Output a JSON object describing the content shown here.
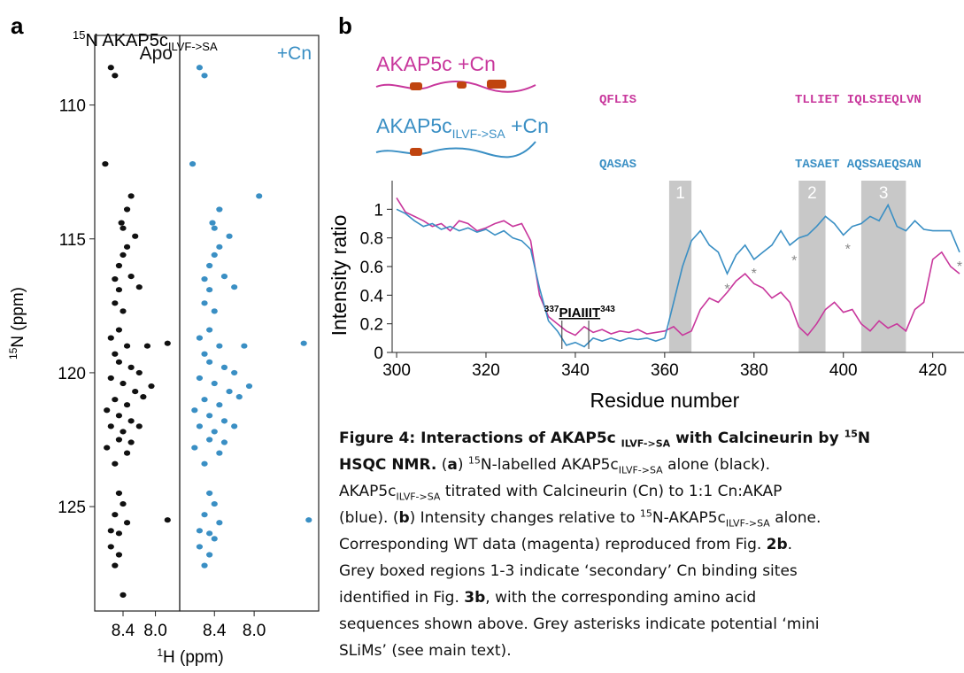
{
  "panel_labels": [
    "a",
    "b"
  ],
  "legend": {
    "wt": [
      "AKAP5c +Cn"
    ],
    "mutant": [
      "AKAP5c",
      "ILVF->SA",
      " +Cn"
    ]
  },
  "sequences": {
    "wt": [
      "QFLIS",
      "TLLIET IQLSIEQLVN"
    ],
    "mutant": [
      "QASAS",
      "TASAET AQSSAEQSAN"
    ]
  },
  "chart_data": [
    {
      "type": "scatter",
      "title": [
        "15",
        "N AKAP5c",
        "ILVF->SA"
      ],
      "label": "Apo",
      "ylabel": [
        "15",
        "N (ppm)"
      ],
      "xlabel": [
        "1",
        "H (ppm)"
      ],
      "color": "#111111",
      "xlim": [
        8.75,
        7.7
      ],
      "ylim": [
        107.4,
        128.9
      ],
      "xticks": [
        8.4,
        {
          "value": 8,
          "label": "8.0"
        }
      ],
      "yticks": [
        110,
        115,
        120,
        125
      ],
      "x": [
        8.55,
        8.5,
        8.62,
        8.3,
        8.35,
        8.42,
        8.4,
        8.25,
        8.35,
        8.4,
        8.45,
        8.5,
        8.45,
        8.3,
        8.2,
        8.5,
        8.4,
        8.45,
        8.55,
        8.35,
        8.5,
        8.1,
        7.85,
        8.45,
        8.3,
        8.2,
        8.55,
        8.4,
        8.05,
        8.25,
        8.15,
        8.5,
        8.35,
        8.6,
        8.45,
        8.3,
        8.55,
        8.4,
        8.2,
        8.45,
        8.6,
        8.35,
        8.5,
        8.3,
        8.45,
        8.4,
        8.5,
        8.35,
        7.85,
        8.55,
        8.45,
        8.45,
        8.5,
        8.4,
        8.55
      ],
      "y": [
        108.6,
        108.9,
        112.2,
        113.4,
        113.9,
        114.4,
        114.6,
        114.9,
        115.3,
        115.6,
        116.0,
        116.5,
        116.9,
        116.4,
        116.8,
        117.4,
        117.7,
        118.4,
        118.7,
        119.0,
        119.3,
        119.0,
        118.9,
        119.6,
        119.8,
        120.0,
        120.2,
        120.4,
        120.5,
        120.7,
        120.9,
        121.0,
        121.2,
        121.4,
        121.6,
        121.8,
        122.0,
        122.2,
        122.0,
        122.5,
        122.8,
        123.0,
        123.4,
        122.6,
        124.5,
        124.9,
        125.3,
        125.6,
        125.5,
        125.9,
        126.0,
        126.8,
        127.2,
        128.3,
        126.5
      ]
    },
    {
      "type": "scatter",
      "label": "+Cn",
      "color": "#3a8fc4",
      "xlim": [
        8.75,
        7.35
      ],
      "xticks": [
        8.4,
        {
          "value": 8,
          "label": "8.0"
        }
      ],
      "x": [
        8.55,
        8.5,
        8.62,
        7.95,
        8.35,
        8.42,
        8.4,
        8.25,
        8.35,
        8.4,
        8.45,
        8.5,
        8.45,
        8.3,
        8.2,
        8.5,
        8.4,
        8.45,
        8.55,
        8.35,
        8.5,
        8.1,
        7.5,
        8.45,
        8.3,
        8.2,
        8.55,
        8.4,
        8.05,
        8.25,
        8.15,
        8.5,
        8.35,
        8.6,
        8.45,
        8.3,
        8.55,
        8.4,
        8.2,
        8.45,
        8.6,
        8.35,
        8.5,
        8.3,
        8.45,
        8.4,
        8.5,
        8.35,
        7.45,
        8.55,
        8.45,
        8.45,
        8.5,
        8.4,
        8.55
      ],
      "y": [
        108.6,
        108.9,
        112.2,
        113.4,
        113.9,
        114.4,
        114.6,
        114.9,
        115.3,
        115.6,
        116.0,
        116.5,
        116.9,
        116.4,
        116.8,
        117.4,
        117.7,
        118.4,
        118.7,
        119.0,
        119.3,
        119.0,
        118.9,
        119.6,
        119.8,
        120.0,
        120.2,
        120.4,
        120.5,
        120.7,
        120.9,
        121.0,
        121.2,
        121.4,
        121.6,
        121.8,
        122.0,
        122.2,
        122.0,
        122.5,
        122.8,
        123.0,
        123.4,
        122.6,
        124.5,
        124.9,
        125.3,
        125.6,
        125.5,
        125.9,
        126.0,
        126.8,
        127.2,
        126.2,
        126.5
      ]
    },
    {
      "type": "line",
      "xlabel": "Residue number",
      "ylabel": "Intensity ratio",
      "xlim": [
        299,
        427
      ],
      "ylim": [
        0,
        1.2
      ],
      "xticks": [
        300,
        320,
        340,
        360,
        380,
        400,
        420
      ],
      "yticks": [
        0,
        0.2,
        0.4,
        0.6,
        0.8,
        1
      ],
      "x": [
        300,
        302,
        304,
        306,
        308,
        310,
        312,
        314,
        316,
        318,
        320,
        322,
        324,
        326,
        328,
        330,
        332,
        334,
        336,
        338,
        340,
        342,
        344,
        346,
        348,
        350,
        352,
        354,
        356,
        358,
        360,
        362,
        364,
        366,
        368,
        370,
        372,
        374,
        376,
        378,
        380,
        382,
        384,
        386,
        388,
        390,
        392,
        394,
        396,
        398,
        400,
        402,
        404,
        406,
        408,
        410,
        412,
        414,
        416,
        418,
        420,
        422,
        424,
        426
      ],
      "series": [
        {
          "color": "#c8379c",
          "values": [
            1.08,
            0.98,
            0.95,
            0.92,
            0.88,
            0.9,
            0.85,
            0.92,
            0.9,
            0.85,
            0.87,
            0.9,
            0.92,
            0.88,
            0.9,
            0.78,
            0.4,
            0.25,
            0.2,
            0.15,
            0.12,
            0.18,
            0.14,
            0.16,
            0.13,
            0.15,
            0.14,
            0.16,
            0.13,
            0.14,
            0.15,
            0.18,
            0.12,
            0.15,
            0.3,
            0.38,
            0.35,
            0.42,
            0.5,
            0.55,
            0.48,
            0.45,
            0.38,
            0.42,
            0.35,
            0.18,
            0.12,
            0.2,
            0.3,
            0.35,
            0.28,
            0.3,
            0.2,
            0.15,
            0.22,
            0.17,
            0.2,
            0.15,
            0.3,
            0.35,
            0.65,
            0.7,
            0.6,
            0.55
          ]
        },
        {
          "color": "#3a8fc4",
          "values": [
            1.0,
            0.97,
            0.92,
            0.88,
            0.9,
            0.86,
            0.88,
            0.85,
            0.87,
            0.84,
            0.86,
            0.82,
            0.85,
            0.8,
            0.78,
            0.72,
            0.45,
            0.22,
            0.15,
            0.05,
            0.07,
            0.04,
            0.1,
            0.08,
            0.1,
            0.08,
            0.1,
            0.09,
            0.1,
            0.08,
            0.1,
            0.35,
            0.6,
            0.78,
            0.85,
            0.75,
            0.7,
            0.55,
            0.68,
            0.75,
            0.65,
            0.7,
            0.75,
            0.85,
            0.75,
            0.8,
            0.82,
            0.88,
            0.95,
            0.9,
            0.82,
            0.88,
            0.9,
            0.95,
            0.92,
            1.03,
            0.88,
            0.85,
            0.92,
            0.86,
            0.85,
            0.85,
            0.85,
            0.7
          ]
        }
      ],
      "regions": [
        {
          "label": "1",
          "start": 361,
          "end": 366
        },
        {
          "label": "2",
          "start": 390,
          "end": 396
        },
        {
          "label": "3",
          "start": 404,
          "end": 414
        }
      ],
      "motif": {
        "start": 337,
        "end": 343,
        "sequence": "PIAIIIT"
      },
      "annotations": [
        {
          "text": "*",
          "x": 374,
          "y": 0.46
        },
        {
          "text": "*",
          "x": 380,
          "y": 0.57
        },
        {
          "text": "*",
          "x": 389,
          "y": 0.66
        },
        {
          "text": "*",
          "x": 401,
          "y": 0.74
        },
        {
          "text": "*",
          "x": 426,
          "y": 0.62
        }
      ]
    }
  ],
  "caption": [
    "Figure 4: Interactions of AKAP5c ",
    "ILVF->SA",
    " with Calcineurin by ",
    "15",
    "N",
    "HSQC NMR.",
    " (",
    "a",
    ") ",
    "15",
    "N-labelled AKAP5c",
    "ILVF->SA",
    " alone (black).",
    "AKAP5c",
    "ILVF->SA",
    " titrated with Calcineurin (Cn) to 1:1 Cn:AKAP",
    "(blue). (",
    "b",
    ") Intensity changes relative to ",
    "15",
    "N-AKAP5c",
    "ILVF->SA",
    " alone.",
    "Corresponding WT data (magenta) reproduced from Fig. ",
    "2b",
    ".",
    "Grey boxed regions 1-3 indicate ‘secondary’ Cn binding sites",
    "identified in Fig. ",
    "3b",
    ", with the corresponding amino acid",
    "sequences shown above. Grey asterisks indicate potential ‘mini",
    "SLiMs’ (see main text)."
  ]
}
